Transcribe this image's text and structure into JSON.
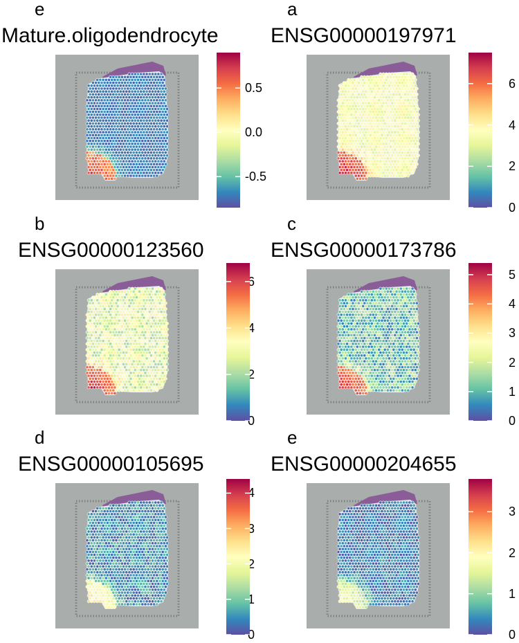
{
  "colors": {
    "spectral": [
      "#5E4FA2",
      "#3288BD",
      "#66C2A5",
      "#ABDDA4",
      "#E6F598",
      "#FFFFBF",
      "#FEE08B",
      "#FDAE61",
      "#F46D43",
      "#D53E4F",
      "#9E0142"
    ],
    "background_grey": "#a9adab",
    "tissue_purple": "#8a5c98",
    "spot_outline": "#ffffff"
  },
  "chart_data": [
    {
      "type": "heatmap",
      "panel_letter": "e",
      "title": "Mature.oligodendrocyte",
      "colorbar_ticks": [
        -0.5,
        0.0,
        0.5
      ],
      "colorbar_tick_labels": [
        "-0.5",
        "0.0",
        "0.5"
      ],
      "range": [
        -0.85,
        0.9
      ],
      "pattern": "hot corner at lower-left of tissue, low elsewhere"
    },
    {
      "type": "heatmap",
      "panel_letter": "a",
      "title": "ENSG00000197971",
      "colorbar_ticks": [
        0,
        2,
        4,
        6
      ],
      "colorbar_tick_labels": [
        "0",
        "2",
        "4",
        "6"
      ],
      "range": [
        0,
        7.5
      ],
      "pattern": "high lower-left, medium (yellow) across rest of tissue"
    },
    {
      "type": "heatmap",
      "panel_letter": "b",
      "title": "ENSG00000123560",
      "colorbar_ticks": [
        0,
        2,
        4,
        6
      ],
      "colorbar_tick_labels": [
        "0",
        "2",
        "4",
        "6"
      ],
      "range": [
        0,
        6.8
      ],
      "pattern": "high lower-left, mixed medium elsewhere"
    },
    {
      "type": "heatmap",
      "panel_letter": "c",
      "title": "ENSG00000173786",
      "colorbar_ticks": [
        0,
        1,
        2,
        3,
        4,
        5
      ],
      "colorbar_tick_labels": [
        "0",
        "1",
        "2",
        "3",
        "4",
        "5"
      ],
      "range": [
        0,
        5.4
      ],
      "pattern": "high lower-left, mostly low elsewhere"
    },
    {
      "type": "heatmap",
      "panel_letter": "d",
      "title": "ENSG00000105695",
      "colorbar_ticks": [
        0,
        1,
        2,
        3,
        4
      ],
      "colorbar_tick_labels": [
        "0",
        "1",
        "2",
        "3",
        "4"
      ],
      "range": [
        0,
        4.4
      ],
      "pattern": "moderate lower-left, low elsewhere"
    },
    {
      "type": "heatmap",
      "panel_letter": "e",
      "title": "ENSG00000204655",
      "colorbar_ticks": [
        0,
        1,
        2,
        3
      ],
      "colorbar_tick_labels": [
        "0",
        "1",
        "2",
        "3"
      ],
      "range": [
        0,
        3.8
      ],
      "pattern": "moderate lower-left, low elsewhere"
    }
  ]
}
